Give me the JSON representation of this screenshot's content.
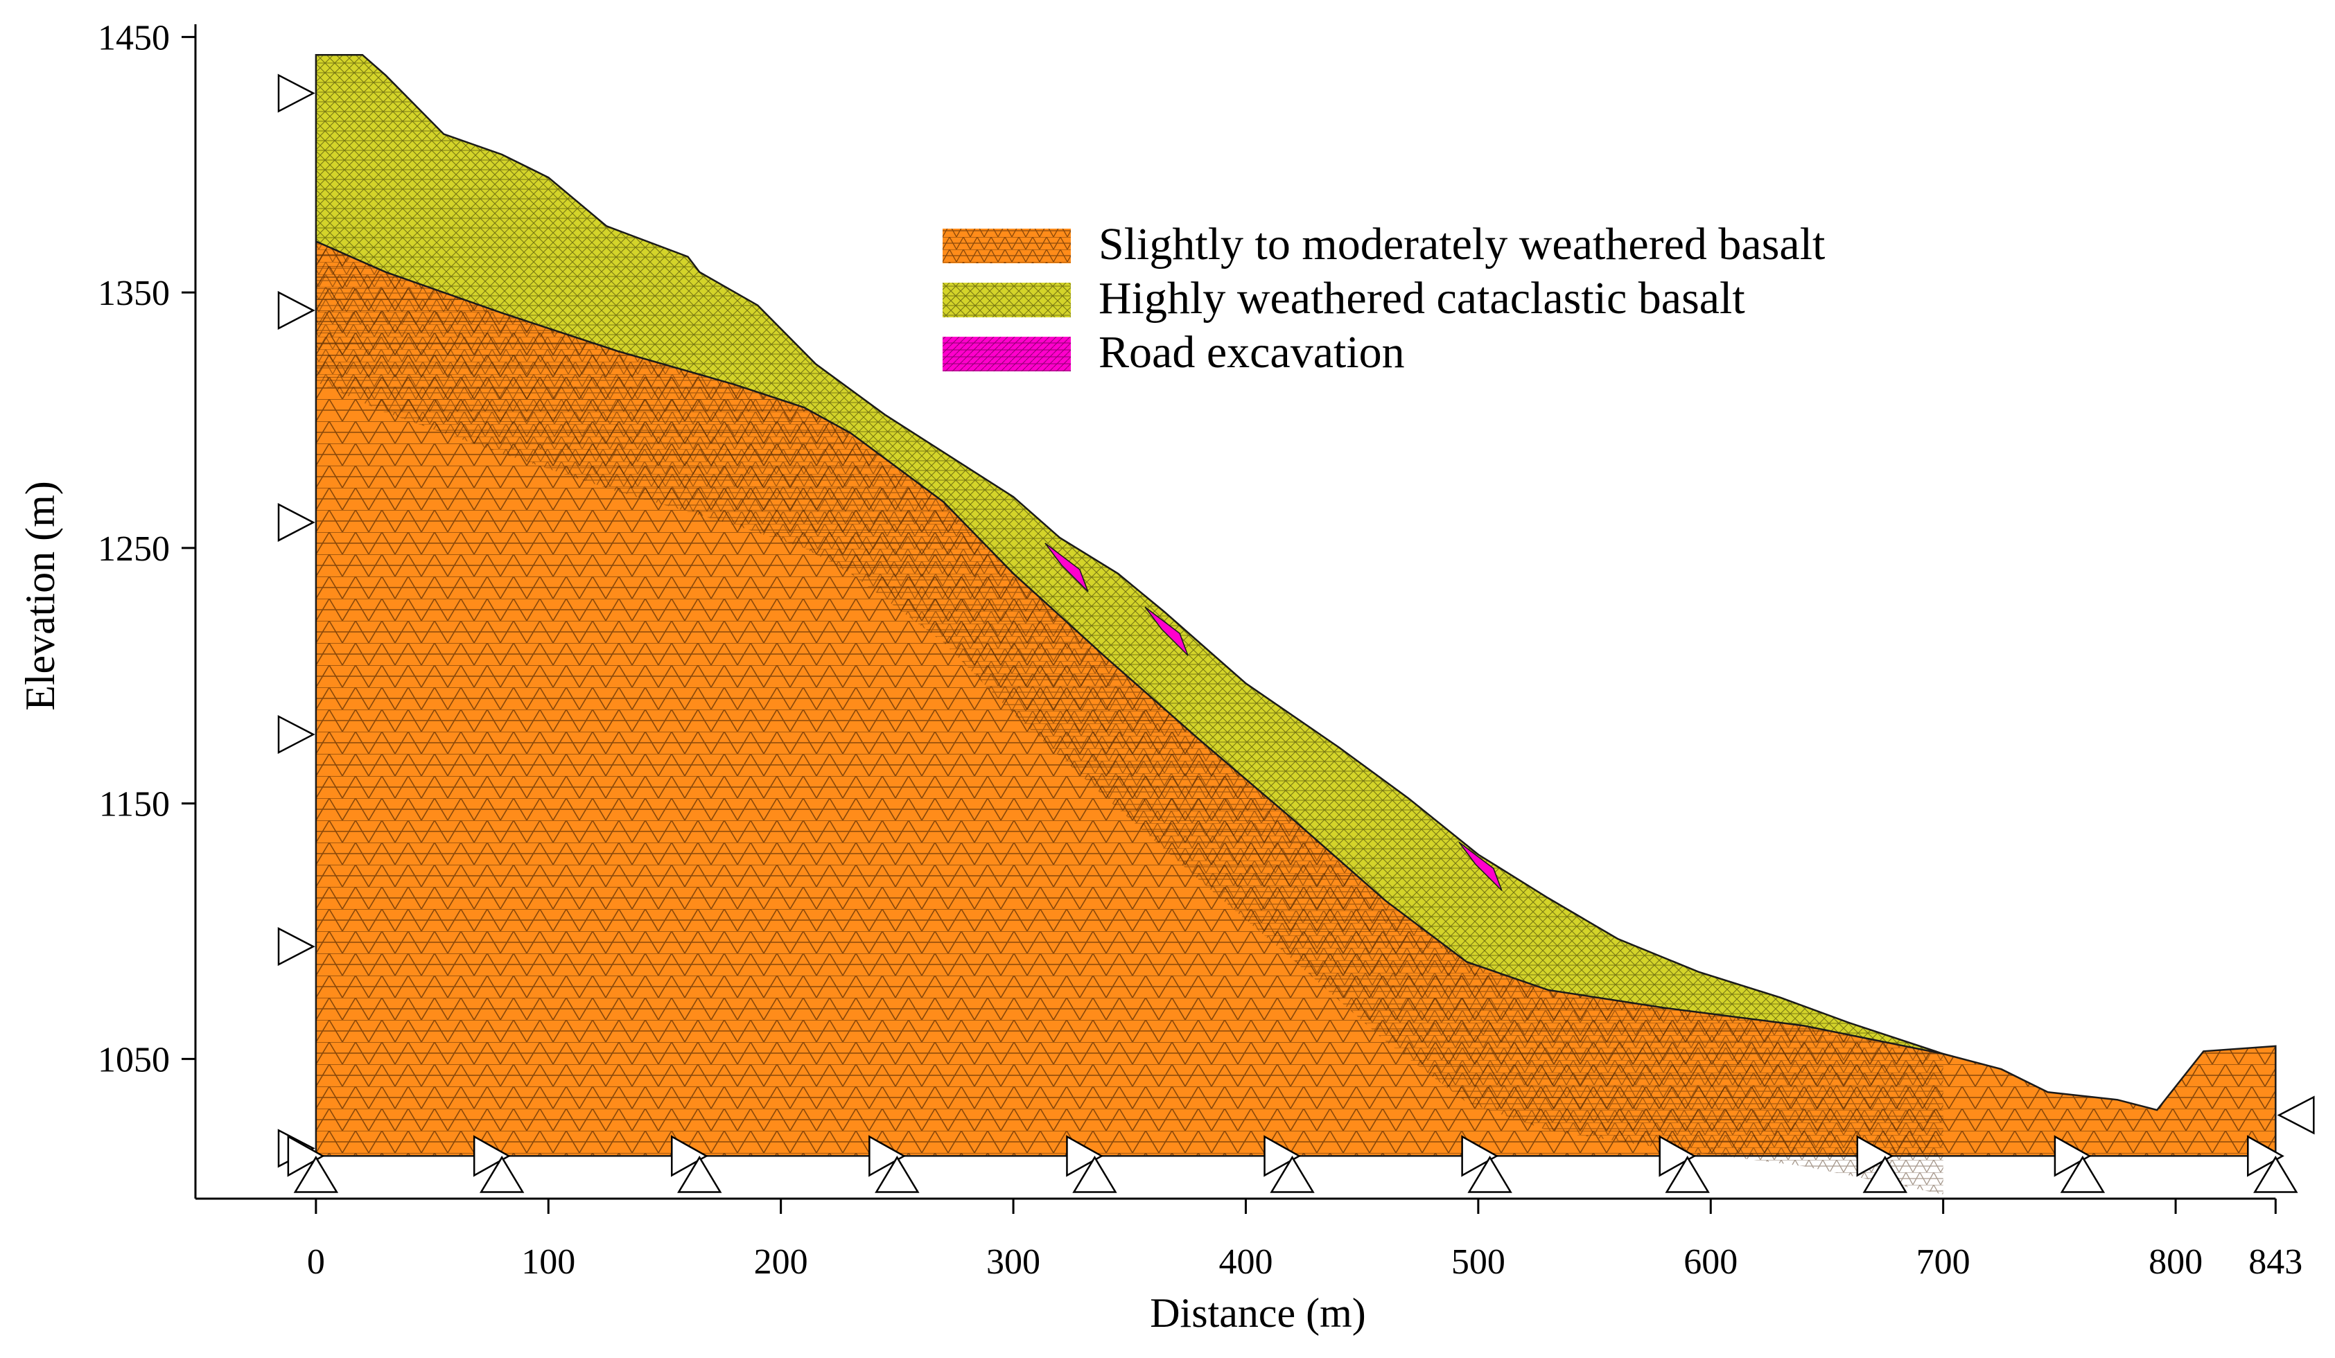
{
  "colors": {
    "basalt_fill": "#ff8c1a",
    "cataclastic_fill": "#d4d42a",
    "road_fill": "#ff00cc",
    "mesh_line": "#1a1a1a",
    "axis": "#000000"
  },
  "axes": {
    "x_title": "Distance (m)",
    "y_title": "Elevation (m)",
    "x_range": [
      -25,
      845
    ],
    "y_range": [
      985,
      1455
    ],
    "x_ticks": [
      {
        "value": 0,
        "label": "0"
      },
      {
        "value": 100,
        "label": "100"
      },
      {
        "value": 200,
        "label": "200"
      },
      {
        "value": 300,
        "label": "300"
      },
      {
        "value": 400,
        "label": "400"
      },
      {
        "value": 500,
        "label": "500"
      },
      {
        "value": 600,
        "label": "600"
      },
      {
        "value": 700,
        "label": "700"
      },
      {
        "value": 800,
        "label": "800"
      },
      {
        "value": 843,
        "label": "843"
      }
    ],
    "y_ticks": [
      {
        "value": 1050,
        "label": "1050"
      },
      {
        "value": 1150,
        "label": "1150"
      },
      {
        "value": 1250,
        "label": "1250"
      },
      {
        "value": 1350,
        "label": "1350"
      },
      {
        "value": 1450,
        "label": "1450"
      }
    ]
  },
  "legend": [
    {
      "label": "Slightly to moderately weathered basalt",
      "color_key": "basalt_fill",
      "icon": "orange-mesh-swatch"
    },
    {
      "label": "Highly weathered cataclastic basalt",
      "color_key": "cataclastic_fill",
      "icon": "yellow-mesh-swatch"
    },
    {
      "label": "Road excavation",
      "color_key": "road_fill",
      "icon": "magenta-mesh-swatch"
    }
  ],
  "model": {
    "base_elevation": 1012,
    "surface_profile": [
      [
        0,
        1443
      ],
      [
        20,
        1443
      ],
      [
        30,
        1435
      ],
      [
        55,
        1412
      ],
      [
        80,
        1404
      ],
      [
        100,
        1395
      ],
      [
        125,
        1376
      ],
      [
        160,
        1364
      ],
      [
        165,
        1358
      ],
      [
        190,
        1345
      ],
      [
        215,
        1322
      ],
      [
        245,
        1302
      ],
      [
        300,
        1270
      ],
      [
        320,
        1254
      ],
      [
        345,
        1240
      ],
      [
        365,
        1225
      ],
      [
        400,
        1197
      ],
      [
        440,
        1172
      ],
      [
        470,
        1152
      ],
      [
        500,
        1130
      ],
      [
        530,
        1113
      ],
      [
        560,
        1097
      ],
      [
        595,
        1084
      ],
      [
        630,
        1074
      ],
      [
        660,
        1064
      ],
      [
        700,
        1052
      ],
      [
        725,
        1046
      ],
      [
        745,
        1037
      ],
      [
        775,
        1034
      ],
      [
        792,
        1030
      ],
      [
        812,
        1053
      ],
      [
        843,
        1055
      ],
      [
        843,
        1012
      ],
      [
        0,
        1012
      ]
    ],
    "basalt_top_profile": [
      [
        0,
        1370
      ],
      [
        30,
        1358
      ],
      [
        80,
        1342
      ],
      [
        130,
        1327
      ],
      [
        180,
        1314
      ],
      [
        210,
        1305
      ],
      [
        230,
        1295
      ],
      [
        270,
        1268
      ],
      [
        300,
        1240
      ],
      [
        340,
        1207
      ],
      [
        380,
        1175
      ],
      [
        420,
        1144
      ],
      [
        460,
        1112
      ],
      [
        495,
        1088
      ],
      [
        530,
        1077
      ],
      [
        580,
        1070
      ],
      [
        640,
        1063
      ],
      [
        700,
        1052
      ]
    ],
    "road_cuts": [
      {
        "x": 322,
        "elev": 1247
      },
      {
        "x": 365,
        "elev": 1222
      },
      {
        "x": 500,
        "elev": 1130
      }
    ],
    "left_supports_elev": [
      1428,
      1343,
      1260,
      1177,
      1094,
      1015
    ],
    "bottom_supports_x": [
      0,
      80,
      165,
      250,
      335,
      420,
      505,
      590,
      675,
      760,
      843
    ]
  }
}
